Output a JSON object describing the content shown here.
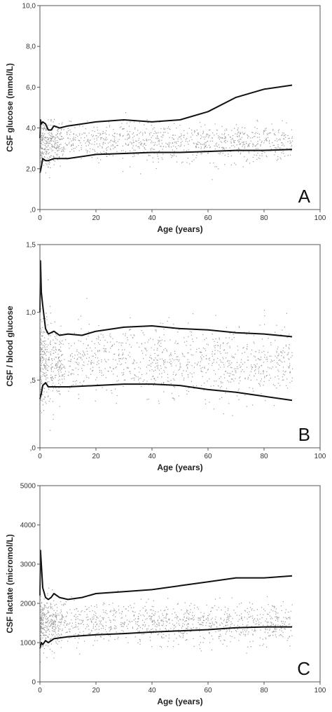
{
  "chart_data": [
    {
      "type": "scatter",
      "panel_label": "A",
      "xlabel": "Age (years)",
      "ylabel": "CSF glucose (mmol/L)",
      "xlim": [
        0,
        100
      ],
      "ylim": [
        0,
        10
      ],
      "x_ticks": [
        "0",
        "20",
        "40",
        "60",
        "80",
        "100"
      ],
      "y_ticks": [
        ",0",
        "2,0",
        "4,0",
        "6,0",
        "8,0",
        "10,0"
      ],
      "grid": false,
      "point_color": "#9a9a9a",
      "line_color": "#111111",
      "point_cloud": {
        "x_range": [
          0,
          90
        ],
        "center": 3.3,
        "spread": 0.45,
        "count": 1200
      },
      "series": [
        {
          "x": [
            0,
            0.2,
            0.5,
            1,
            2,
            3,
            4,
            5,
            7,
            10,
            20,
            30,
            40,
            50,
            60,
            70,
            80,
            90
          ],
          "y": [
            3.5,
            4.4,
            4.2,
            4.3,
            4.2,
            3.9,
            3.9,
            4.1,
            4.0,
            4.1,
            4.3,
            4.4,
            4.3,
            4.4,
            4.8,
            5.5,
            5.9,
            6.1
          ]
        },
        {
          "x": [
            0,
            0.2,
            0.5,
            1,
            2,
            3,
            5,
            10,
            20,
            30,
            40,
            50,
            60,
            70,
            80,
            90
          ],
          "y": [
            1.8,
            1.9,
            2.1,
            2.5,
            2.4,
            2.4,
            2.5,
            2.5,
            2.7,
            2.75,
            2.8,
            2.8,
            2.85,
            2.9,
            2.9,
            2.95
          ]
        }
      ]
    },
    {
      "type": "scatter",
      "panel_label": "B",
      "xlabel": "Age (years)",
      "ylabel": "CSF / blood glucose",
      "xlim": [
        0,
        100
      ],
      "ylim": [
        0,
        1.5
      ],
      "x_ticks": [
        "0",
        "20",
        "40",
        "60",
        "80",
        "100"
      ],
      "y_ticks": [
        ",0",
        ",5",
        "1,0",
        "1,5"
      ],
      "grid": false,
      "point_color": "#9a9a9a",
      "line_color": "#111111",
      "point_cloud": {
        "x_range": [
          0,
          90
        ],
        "center": 0.64,
        "spread": 0.13,
        "count": 1300
      },
      "series": [
        {
          "x": [
            0,
            0.2,
            0.5,
            1,
            2,
            3,
            5,
            7,
            10,
            15,
            20,
            30,
            40,
            50,
            60,
            70,
            80,
            90
          ],
          "y": [
            1.0,
            1.38,
            1.15,
            1.05,
            0.88,
            0.84,
            0.86,
            0.83,
            0.84,
            0.83,
            0.86,
            0.89,
            0.9,
            0.88,
            0.87,
            0.85,
            0.84,
            0.82
          ]
        },
        {
          "x": [
            0,
            0.2,
            0.5,
            1,
            2,
            3,
            5,
            10,
            20,
            30,
            40,
            50,
            60,
            70,
            80,
            90
          ],
          "y": [
            0.36,
            0.38,
            0.4,
            0.46,
            0.48,
            0.45,
            0.45,
            0.45,
            0.46,
            0.47,
            0.47,
            0.46,
            0.43,
            0.41,
            0.38,
            0.35
          ]
        }
      ]
    },
    {
      "type": "scatter",
      "panel_label": "C",
      "xlabel": "Age (years)",
      "ylabel": "CSF lactate (micromol/L)",
      "xlim": [
        0,
        100
      ],
      "ylim": [
        0,
        5000
      ],
      "x_ticks": [
        "0",
        "20",
        "40",
        "60",
        "80",
        "100"
      ],
      "y_ticks": [
        "0",
        "1000",
        "2000",
        "3000",
        "4000",
        "5000"
      ],
      "grid": false,
      "point_color": "#9a9a9a",
      "line_color": "#111111",
      "point_cloud": {
        "x_range": [
          0,
          90
        ],
        "center": 1500,
        "spread": 250,
        "count": 1300
      },
      "series": [
        {
          "x": [
            0,
            0.2,
            0.5,
            1,
            2,
            3,
            4,
            5,
            7,
            10,
            15,
            20,
            30,
            40,
            50,
            60,
            70,
            80,
            90
          ],
          "y": [
            2200,
            3350,
            3000,
            2400,
            2150,
            2100,
            2150,
            2250,
            2150,
            2100,
            2150,
            2250,
            2300,
            2350,
            2450,
            2550,
            2650,
            2650,
            2700
          ]
        },
        {
          "x": [
            0,
            0.2,
            0.5,
            1,
            2,
            3,
            5,
            10,
            20,
            30,
            40,
            50,
            60,
            70,
            80,
            90
          ],
          "y": [
            850,
            900,
            1000,
            950,
            1050,
            1000,
            1100,
            1150,
            1200,
            1230,
            1270,
            1300,
            1330,
            1380,
            1400,
            1400
          ]
        }
      ]
    }
  ]
}
